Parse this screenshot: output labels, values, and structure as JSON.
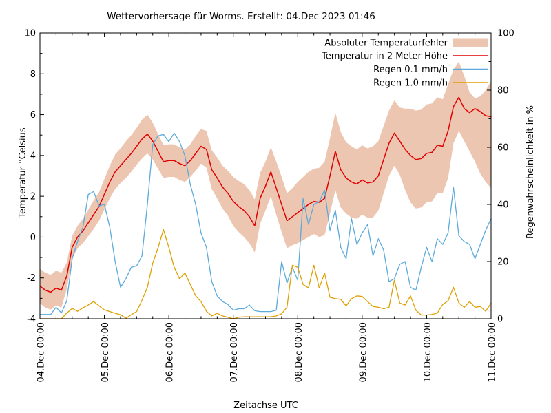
{
  "title": "Wettervorhersage für Worms. Erstellt: 04.Dec 2023 01:46",
  "axes": {
    "x": {
      "title": "Zeitachse UTC",
      "tick_labels": [
        "04.Dec 00:00",
        "05.Dec 00:00",
        "06.Dec 00:00",
        "07.Dec 00:00",
        "08.Dec 00:00",
        "09.Dec 00:00",
        "10.Dec 00:00",
        "11.Dec 00:00"
      ],
      "tick_hours": [
        0,
        24,
        48,
        72,
        96,
        120,
        144,
        168
      ],
      "minor_step_hours": 6,
      "range_hours": [
        0,
        168
      ]
    },
    "y_left": {
      "title": "Temperatur °Celsius",
      "ticks": [
        -4,
        -2,
        0,
        2,
        4,
        6,
        8,
        10
      ],
      "minor_step": 1,
      "range": [
        -4,
        10
      ]
    },
    "y_right": {
      "title": "Regenwahrscheinlichkeit in %",
      "ticks": [
        0,
        20,
        40,
        60,
        80,
        100
      ],
      "minor_step": 10,
      "range": [
        0,
        100
      ]
    }
  },
  "legend": {
    "items": [
      {
        "label": "Absoluter Temperaturfehler",
        "swatch": "band",
        "color": "#ecc6b1"
      },
      {
        "label": "Temperatur in 2 Meter Höhe",
        "swatch": "line",
        "color": "#e00000"
      },
      {
        "label": "Regen 0.1 mm/h",
        "swatch": "line",
        "color": "#5aaadc"
      },
      {
        "label": "Regen 1.0 mm/h",
        "swatch": "line",
        "color": "#e09f00"
      }
    ]
  },
  "colors": {
    "error_band": "#ecc6b1",
    "temperature": "#e00000",
    "rain01": "#5aaadc",
    "rain10": "#e09f00",
    "axis": "#000000",
    "background": "#ffffff"
  },
  "chart_data": {
    "type": "line",
    "x_hours": {
      "start": 0,
      "step": 2,
      "count": 85,
      "unit": "hours since 04.Dec 2023 00:00 UTC"
    },
    "xlabel": "Zeitachse UTC",
    "ylabel_left": "Temperatur °Celsius",
    "ylabel_right": "Regenwahrscheinlichkeit in %",
    "ylim_left": [
      -4,
      10
    ],
    "ylim_right": [
      0,
      100
    ],
    "grid": false,
    "legend_position": "top-right-inside",
    "series": [
      {
        "name": "Absoluter Temperaturfehler",
        "type": "band",
        "axis": "left",
        "color": "#ecc6b1",
        "upper": [
          -1.55,
          -1.75,
          -1.85,
          -1.65,
          -1.75,
          -1.25,
          0.05,
          0.55,
          0.9,
          1.35,
          1.8,
          2.2,
          2.85,
          3.5,
          4.05,
          4.35,
          4.7,
          5.0,
          5.35,
          5.75,
          6.0,
          5.6,
          5.05,
          4.5,
          4.55,
          4.55,
          4.4,
          4.3,
          4.55,
          4.95,
          5.3,
          5.2,
          4.25,
          3.9,
          3.5,
          3.25,
          2.95,
          2.75,
          2.6,
          2.3,
          1.85,
          3.15,
          3.7,
          4.4,
          3.7,
          2.95,
          2.15,
          2.4,
          2.7,
          2.95,
          3.2,
          3.35,
          3.4,
          3.7,
          4.85,
          6.1,
          5.15,
          4.65,
          4.45,
          4.3,
          4.5,
          4.35,
          4.45,
          4.7,
          5.45,
          6.2,
          6.7,
          6.35,
          6.3,
          6.3,
          6.2,
          6.25,
          6.5,
          6.55,
          6.85,
          6.75,
          7.5,
          8.2,
          8.6,
          7.9,
          7.1,
          6.8,
          6.9,
          7.2,
          7.65
        ],
        "lower": [
          -3.25,
          -3.45,
          -3.55,
          -3.35,
          -3.45,
          -2.55,
          -1.05,
          -0.55,
          -0.3,
          0.05,
          0.4,
          0.8,
          1.35,
          1.9,
          2.35,
          2.65,
          2.9,
          3.2,
          3.55,
          3.85,
          4.1,
          3.8,
          3.35,
          2.9,
          2.95,
          2.95,
          2.8,
          2.7,
          2.95,
          3.25,
          3.6,
          3.4,
          2.35,
          1.9,
          1.4,
          1.05,
          0.55,
          0.25,
          0.0,
          -0.3,
          -0.75,
          0.65,
          1.3,
          2.0,
          1.1,
          0.25,
          -0.55,
          -0.4,
          -0.3,
          -0.15,
          0.0,
          0.15,
          0.0,
          0.1,
          1.15,
          2.3,
          1.45,
          1.15,
          0.95,
          0.9,
          1.1,
          0.95,
          0.95,
          1.3,
          2.15,
          3.0,
          3.5,
          3.05,
          2.3,
          1.7,
          1.4,
          1.45,
          1.7,
          1.75,
          2.15,
          2.15,
          2.9,
          4.6,
          5.2,
          4.7,
          4.2,
          3.7,
          3.1,
          2.7,
          2.4
        ]
      },
      {
        "name": "Temperatur in 2 Meter Höhe",
        "type": "line",
        "axis": "left",
        "color": "#e00000",
        "values": [
          -2.4,
          -2.6,
          -2.7,
          -2.5,
          -2.6,
          -1.9,
          -0.5,
          0.0,
          0.3,
          0.7,
          1.1,
          1.5,
          2.1,
          2.7,
          3.2,
          3.5,
          3.8,
          4.1,
          4.45,
          4.8,
          5.05,
          4.7,
          4.2,
          3.7,
          3.75,
          3.75,
          3.6,
          3.5,
          3.75,
          4.1,
          4.45,
          4.3,
          3.3,
          2.9,
          2.45,
          2.15,
          1.75,
          1.5,
          1.3,
          1.0,
          0.55,
          1.9,
          2.5,
          3.2,
          2.4,
          1.6,
          0.8,
          1.0,
          1.2,
          1.4,
          1.6,
          1.75,
          1.7,
          1.9,
          3.0,
          4.2,
          3.3,
          2.9,
          2.7,
          2.6,
          2.8,
          2.65,
          2.7,
          3.0,
          3.8,
          4.6,
          5.1,
          4.7,
          4.3,
          4.0,
          3.8,
          3.85,
          4.1,
          4.15,
          4.5,
          4.45,
          5.2,
          6.4,
          6.85,
          6.3,
          6.1,
          6.3,
          6.15,
          5.95,
          5.9
        ]
      },
      {
        "name": "Regen 0.1 mm/h",
        "type": "line",
        "axis": "right",
        "color": "#5aaadc",
        "values": [
          1.5,
          1.5,
          1.5,
          4,
          2,
          6.3,
          21,
          27,
          32,
          43.5,
          44.5,
          39.5,
          40,
          32,
          20,
          11,
          14,
          18,
          18.5,
          22,
          40,
          61,
          64,
          64.5,
          62,
          65,
          62,
          57,
          47,
          40,
          30,
          25,
          13,
          8,
          6,
          5,
          3,
          3.5,
          3.5,
          4.8,
          2.8,
          2.5,
          2.5,
          2.5,
          3,
          20,
          12.5,
          18,
          13.5,
          42,
          33,
          40,
          41,
          45,
          31,
          38,
          25,
          21,
          35,
          26,
          30,
          33,
          22,
          28,
          24,
          13,
          14,
          19,
          20,
          11,
          10,
          18,
          25,
          20,
          28,
          26,
          30,
          46,
          29,
          27,
          26,
          21,
          26,
          31,
          35
        ]
      },
      {
        "name": "Regen 1.0 mm/h",
        "type": "line",
        "axis": "right",
        "color": "#e09f00",
        "values": [
          0,
          0,
          0,
          0,
          0,
          2,
          3.6,
          2.6,
          3.8,
          4.8,
          6,
          4.5,
          3.1,
          2.5,
          1.9,
          1.4,
          0.2,
          1.4,
          2.5,
          6.5,
          11,
          19.5,
          24.8,
          31.2,
          25,
          18,
          14,
          16,
          12,
          8,
          6,
          2.6,
          1,
          1.9,
          1,
          0.5,
          0,
          0.5,
          0.7,
          0.7,
          0.7,
          0.7,
          0.7,
          0.7,
          1,
          1.7,
          4,
          18.7,
          18,
          12,
          10.8,
          18.7,
          10.8,
          16,
          7.5,
          7,
          6.8,
          4.5,
          7,
          8,
          7.8,
          6,
          4.3,
          4,
          3.5,
          4,
          13.5,
          5.5,
          4.8,
          8,
          3,
          1.3,
          1.3,
          1.5,
          2,
          5,
          6.3,
          11,
          5.5,
          4,
          6,
          4,
          4.3,
          2.6,
          5.5
        ]
      }
    ]
  }
}
